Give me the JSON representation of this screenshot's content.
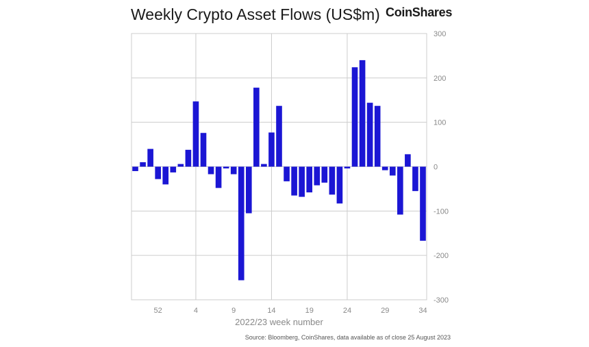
{
  "chart_data": {
    "type": "bar",
    "title": "Weekly Crypto Asset Flows (US$m)",
    "xlabel": "2022/23 week number",
    "ylabel": "",
    "ylim": [
      -300,
      300
    ],
    "yticks": [
      300,
      200,
      100,
      0,
      -100,
      -200,
      -300
    ],
    "x_tick_labels": [
      {
        "index": 3,
        "label": "52"
      },
      {
        "index": 8,
        "label": "4"
      },
      {
        "index": 13,
        "label": "9"
      },
      {
        "index": 18,
        "label": "14"
      },
      {
        "index": 23,
        "label": "19"
      },
      {
        "index": 28,
        "label": "24"
      },
      {
        "index": 33,
        "label": "29"
      },
      {
        "index": 38,
        "label": "34"
      }
    ],
    "vertical_gridlines_at_index": [
      8.5,
      18.5,
      28.5
    ],
    "bar_color": "#1b16d4",
    "grid_color": "#cccccc",
    "values": [
      -10,
      10,
      40,
      -28,
      -40,
      -13,
      6,
      38,
      147,
      76,
      -17,
      -48,
      -4,
      -17,
      -256,
      -105,
      178,
      6,
      77,
      137,
      -33,
      -65,
      -68,
      -58,
      -42,
      -36,
      -63,
      -83,
      -4,
      224,
      240,
      144,
      137,
      -8,
      -20,
      -108,
      28,
      -55,
      -167
    ]
  },
  "brand": {
    "name": "CoinShares"
  },
  "footer": {
    "source": "Source: Bloomberg, CoinShares, data available as of close 25 August 2023"
  }
}
